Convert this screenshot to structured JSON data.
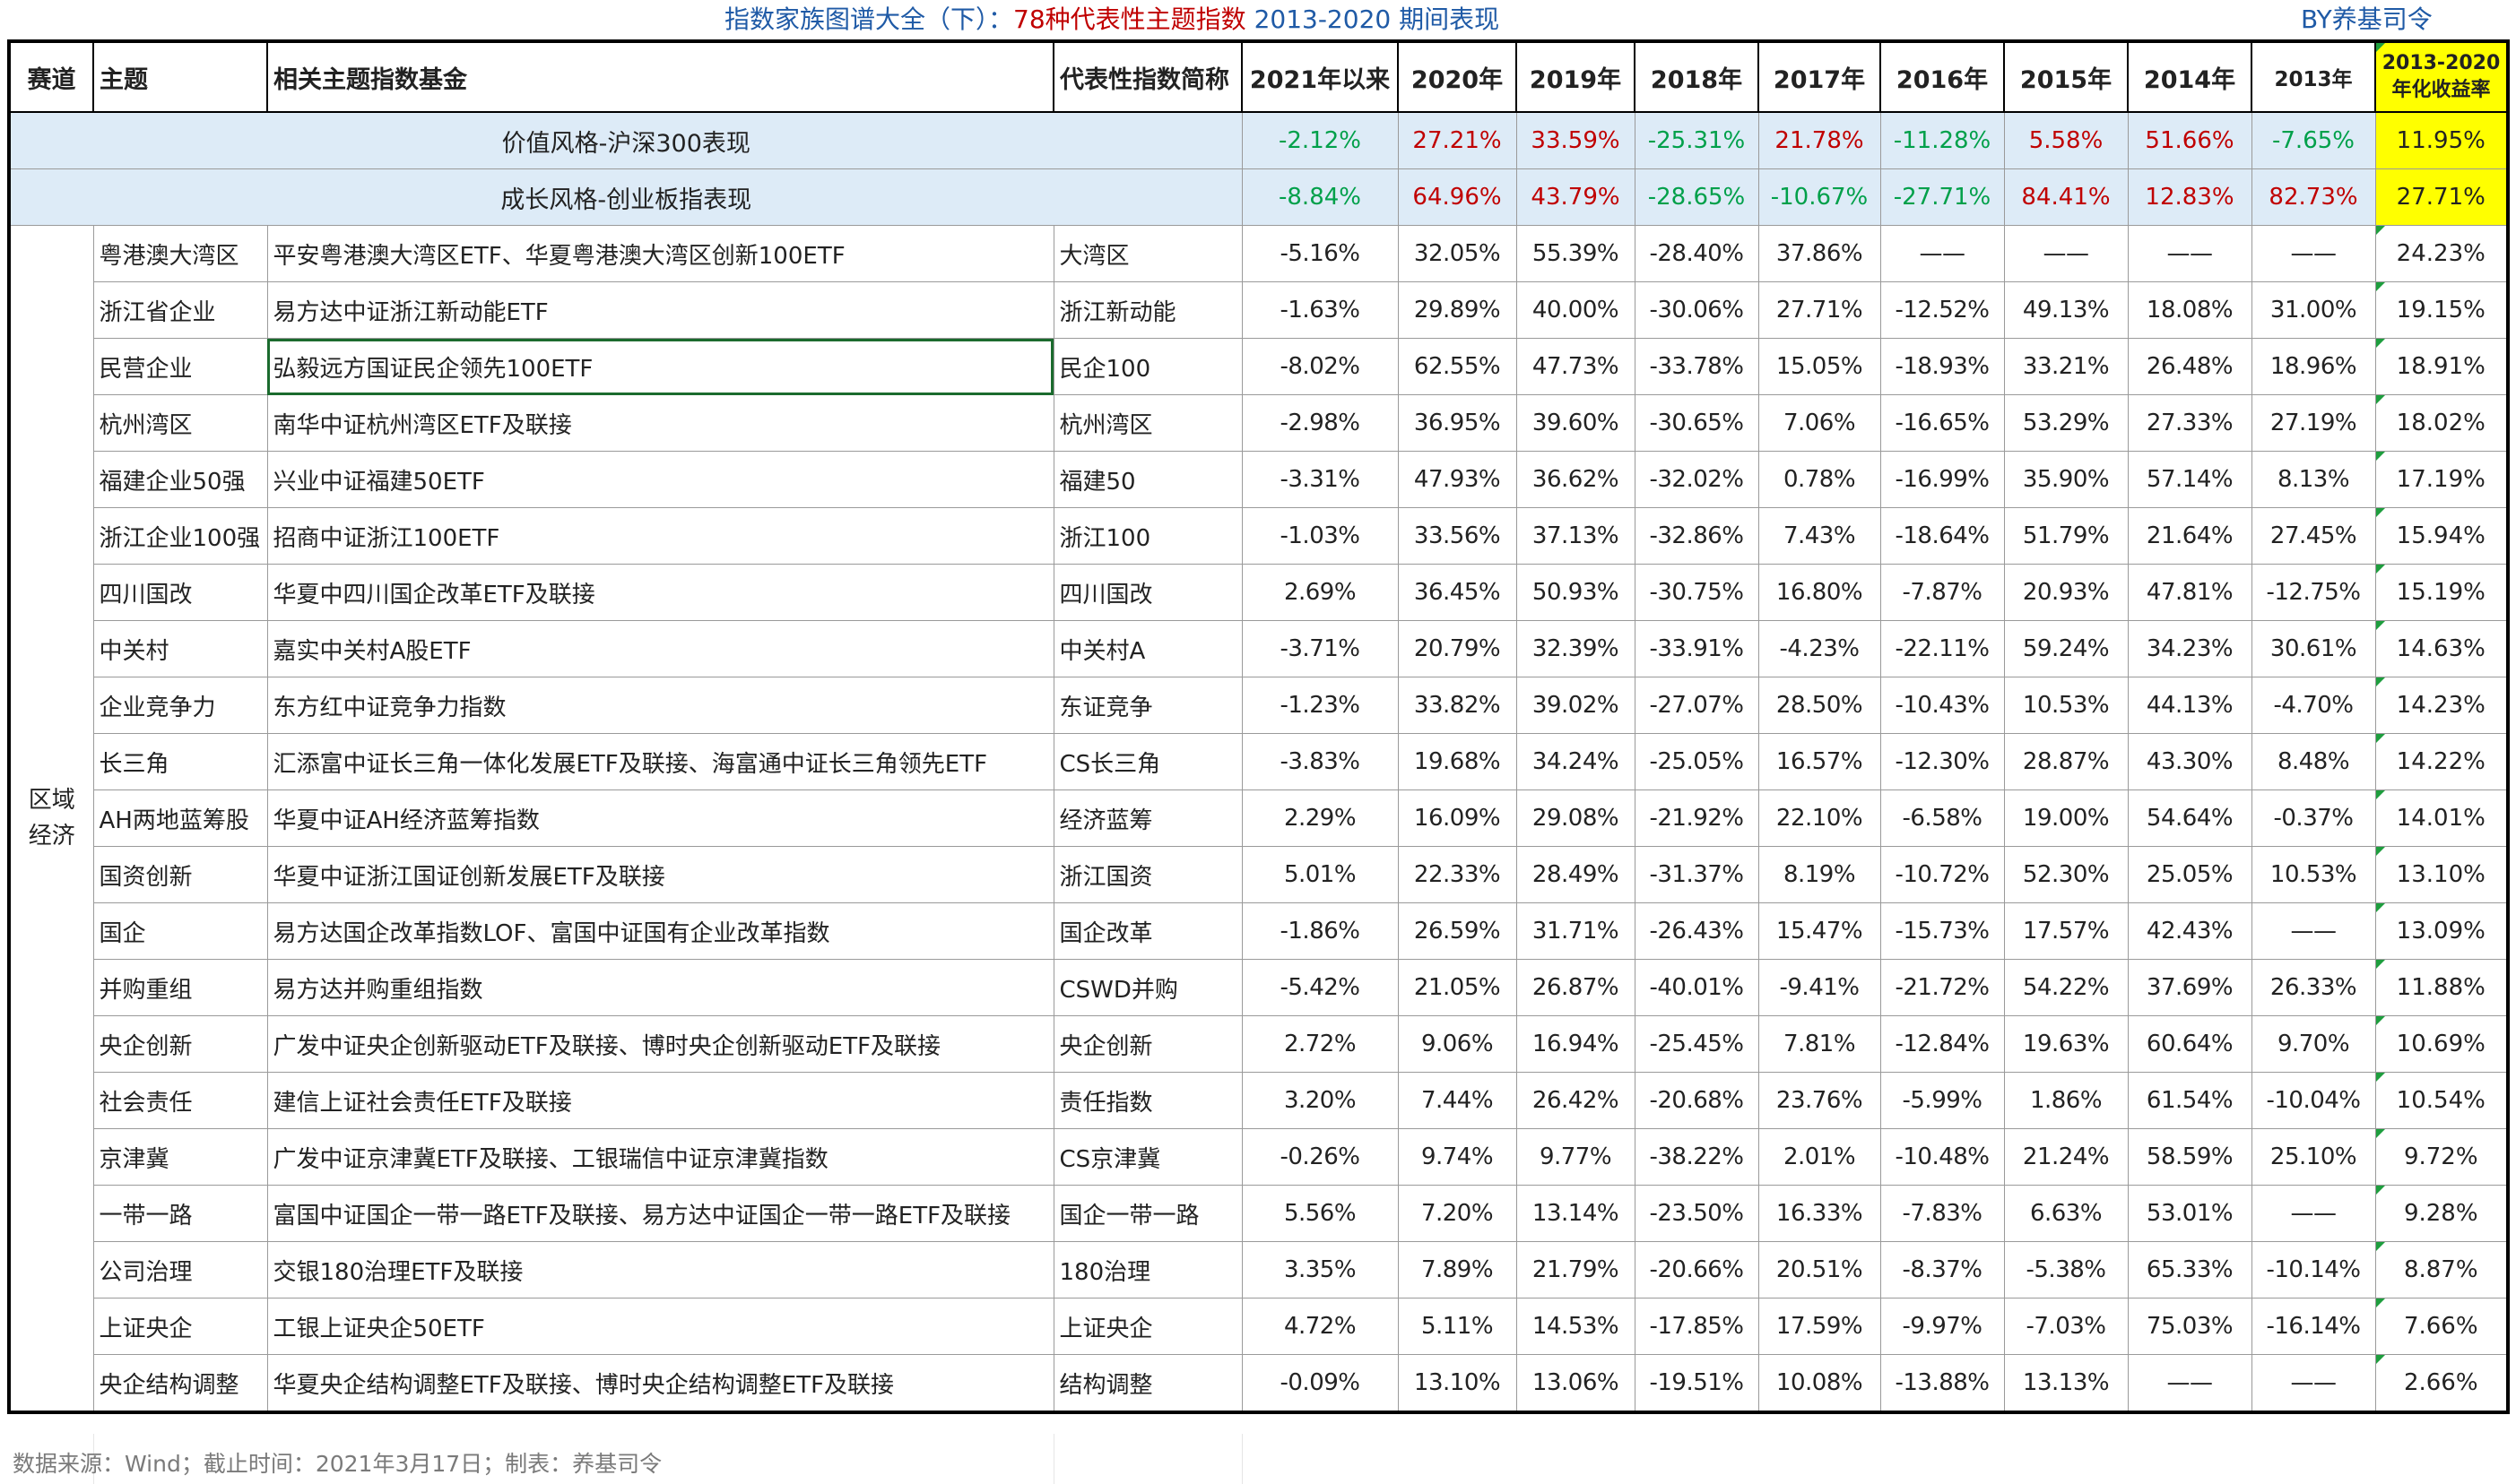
{
  "title": {
    "prefix": "指数家族图谱大全（下）：",
    "highlight": "78种",
    "mid": "代表性主题指数",
    "suffix": " 2013-2020 期间表现",
    "author": "BY养基司令"
  },
  "headers": {
    "track": "赛道",
    "theme": "主题",
    "fund": "相关主题指数基金",
    "index_short": "代表性指数简称",
    "y2021": "2021年以来",
    "y2020": "2020年",
    "y2019": "2019年",
    "y2018": "2018年",
    "y2017": "2017年",
    "y2016": "2016年",
    "y2015": "2015年",
    "y2014": "2014年",
    "y2013": "2013年",
    "annual_line1": "2013-2020",
    "annual_line2": "年化收益率"
  },
  "benchmarks": [
    {
      "label": "价值风格-沪深300表现",
      "values": [
        "-2.12%",
        "27.21%",
        "33.59%",
        "-25.31%",
        "21.78%",
        "-11.28%",
        "5.58%",
        "51.66%",
        "-7.65%"
      ],
      "annual": "11.95%"
    },
    {
      "label": "成长风格-创业板指表现",
      "values": [
        "-8.84%",
        "64.96%",
        "43.79%",
        "-28.65%",
        "-10.67%",
        "-27.71%",
        "84.41%",
        "12.83%",
        "82.73%"
      ],
      "annual": "27.71%"
    }
  ],
  "sector": {
    "line1": "区域",
    "line2": "经济"
  },
  "rows": [
    {
      "theme": "粤港澳大湾区",
      "fund": "平安粤港澳大湾区ETF、华夏粤港澳大湾区创新100ETF",
      "index": "大湾区",
      "values": [
        "-5.16%",
        "32.05%",
        "55.39%",
        "-28.40%",
        "37.86%",
        "——",
        "——",
        "——",
        "——"
      ],
      "annual": "24.23%"
    },
    {
      "theme": "浙江省企业",
      "fund": "易方达中证浙江新动能ETF",
      "index": "浙江新动能",
      "values": [
        "-1.63%",
        "29.89%",
        "40.00%",
        "-30.06%",
        "27.71%",
        "-12.52%",
        "49.13%",
        "18.08%",
        "31.00%"
      ],
      "annual": "19.15%"
    },
    {
      "theme": "民营企业",
      "fund": "弘毅远方国证民企领先100ETF",
      "index": "民企100",
      "values": [
        "-8.02%",
        "62.55%",
        "47.73%",
        "-33.78%",
        "15.05%",
        "-18.93%",
        "33.21%",
        "26.48%",
        "18.96%"
      ],
      "annual": "18.91%"
    },
    {
      "theme": "杭州湾区",
      "fund": "南华中证杭州湾区ETF及联接",
      "index": "杭州湾区",
      "values": [
        "-2.98%",
        "36.95%",
        "39.60%",
        "-30.65%",
        "7.06%",
        "-16.65%",
        "53.29%",
        "27.33%",
        "27.19%"
      ],
      "annual": "18.02%"
    },
    {
      "theme": "福建企业50强",
      "fund": "兴业中证福建50ETF",
      "index": "福建50",
      "values": [
        "-3.31%",
        "47.93%",
        "36.62%",
        "-32.02%",
        "0.78%",
        "-16.99%",
        "35.90%",
        "57.14%",
        "8.13%"
      ],
      "annual": "17.19%"
    },
    {
      "theme": "浙江企业100强",
      "fund": "招商中证浙江100ETF",
      "index": "浙江100",
      "values": [
        "-1.03%",
        "33.56%",
        "37.13%",
        "-32.86%",
        "7.43%",
        "-18.64%",
        "51.79%",
        "21.64%",
        "27.45%"
      ],
      "annual": "15.94%"
    },
    {
      "theme": "四川国改",
      "fund": "华夏中四川国企改革ETF及联接",
      "index": "四川国改",
      "values": [
        "2.69%",
        "36.45%",
        "50.93%",
        "-30.75%",
        "16.80%",
        "-7.87%",
        "20.93%",
        "47.81%",
        "-12.75%"
      ],
      "annual": "15.19%"
    },
    {
      "theme": "中关村",
      "fund": "嘉实中关村A股ETF",
      "index": "中关村A",
      "values": [
        "-3.71%",
        "20.79%",
        "32.39%",
        "-33.91%",
        "-4.23%",
        "-22.11%",
        "59.24%",
        "34.23%",
        "30.61%"
      ],
      "annual": "14.63%"
    },
    {
      "theme": "企业竞争力",
      "fund": "东方红中证竞争力指数",
      "index": "东证竞争",
      "values": [
        "-1.23%",
        "33.82%",
        "39.02%",
        "-27.07%",
        "28.50%",
        "-10.43%",
        "10.53%",
        "44.13%",
        "-4.70%"
      ],
      "annual": "14.23%"
    },
    {
      "theme": "长三角",
      "fund": "汇添富中证长三角一体化发展ETF及联接、海富通中证长三角领先ETF",
      "index": "CS长三角",
      "values": [
        "-3.83%",
        "19.68%",
        "34.24%",
        "-25.05%",
        "16.57%",
        "-12.30%",
        "28.87%",
        "43.30%",
        "8.48%"
      ],
      "annual": "14.22%"
    },
    {
      "theme": "AH两地蓝筹股",
      "fund": "华夏中证AH经济蓝筹指数",
      "index": "经济蓝筹",
      "values": [
        "2.29%",
        "16.09%",
        "29.08%",
        "-21.92%",
        "22.10%",
        "-6.58%",
        "19.00%",
        "54.64%",
        "-0.37%"
      ],
      "annual": "14.01%"
    },
    {
      "theme": "国资创新",
      "fund": "华夏中证浙江国证创新发展ETF及联接",
      "index": "浙江国资",
      "values": [
        "5.01%",
        "22.33%",
        "28.49%",
        "-31.37%",
        "8.19%",
        "-10.72%",
        "52.30%",
        "25.05%",
        "10.53%"
      ],
      "annual": "13.10%"
    },
    {
      "theme": "国企",
      "fund": "易方达国企改革指数LOF、富国中证国有企业改革指数",
      "index": "国企改革",
      "values": [
        "-1.86%",
        "26.59%",
        "31.71%",
        "-26.43%",
        "15.47%",
        "-15.73%",
        "17.57%",
        "42.43%",
        "——"
      ],
      "annual": "13.09%"
    },
    {
      "theme": "并购重组",
      "fund": "易方达并购重组指数",
      "index": "CSWD并购",
      "values": [
        "-5.42%",
        "21.05%",
        "26.87%",
        "-40.01%",
        "-9.41%",
        "-21.72%",
        "54.22%",
        "37.69%",
        "26.33%"
      ],
      "annual": "11.88%"
    },
    {
      "theme": "央企创新",
      "fund": "广发中证央企创新驱动ETF及联接、博时央企创新驱动ETF及联接",
      "index": "央企创新",
      "values": [
        "2.72%",
        "9.06%",
        "16.94%",
        "-25.45%",
        "7.81%",
        "-12.84%",
        "19.63%",
        "60.64%",
        "9.70%"
      ],
      "annual": "10.69%"
    },
    {
      "theme": "社会责任",
      "fund": "建信上证社会责任ETF及联接",
      "index": "责任指数",
      "values": [
        "3.20%",
        "7.44%",
        "26.42%",
        "-20.68%",
        "23.76%",
        "-5.99%",
        "1.86%",
        "61.54%",
        "-10.04%"
      ],
      "annual": "10.54%"
    },
    {
      "theme": "京津冀",
      "fund": "广发中证京津冀ETF及联接、工银瑞信中证京津冀指数",
      "index": "CS京津冀",
      "values": [
        "-0.26%",
        "9.74%",
        "9.77%",
        "-38.22%",
        "2.01%",
        "-10.48%",
        "21.24%",
        "58.59%",
        "25.10%"
      ],
      "annual": "9.72%"
    },
    {
      "theme": "一带一路",
      "fund": "富国中证国企一带一路ETF及联接、易方达中证国企一带一路ETF及联接",
      "index": "国企一带一路",
      "values": [
        "5.56%",
        "7.20%",
        "13.14%",
        "-23.50%",
        "16.33%",
        "-7.83%",
        "6.63%",
        "53.01%",
        "——"
      ],
      "annual": "9.28%"
    },
    {
      "theme": "公司治理",
      "fund": "交银180治理ETF及联接",
      "index": "180治理",
      "values": [
        "3.35%",
        "7.89%",
        "21.79%",
        "-20.66%",
        "20.51%",
        "-8.37%",
        "-5.38%",
        "65.33%",
        "-10.14%"
      ],
      "annual": "8.87%"
    },
    {
      "theme": "上证央企",
      "fund": "工银上证央企50ETF",
      "index": "上证央企",
      "values": [
        "4.72%",
        "5.11%",
        "14.53%",
        "-17.85%",
        "17.59%",
        "-9.97%",
        "-7.03%",
        "75.03%",
        "-16.14%"
      ],
      "annual": "7.66%"
    },
    {
      "theme": "央企结构调整",
      "fund": "华夏央企结构调整ETF及联接、博时央企结构调整ETF及联接",
      "index": "结构调整",
      "values": [
        "-0.09%",
        "13.10%",
        "13.06%",
        "-19.51%",
        "10.08%",
        "-13.88%",
        "13.13%",
        "——",
        "——"
      ],
      "annual": "2.66%"
    }
  ],
  "footer": "数据来源：Wind；截止时间：2021年3月17日；制表：养基司令",
  "colors": {
    "positive": "#c00000",
    "negative": "#00a04a",
    "benchmark_bg": "#ddebf7",
    "annual_bg": "#ffff00",
    "title_blue": "#1f5aa6"
  }
}
